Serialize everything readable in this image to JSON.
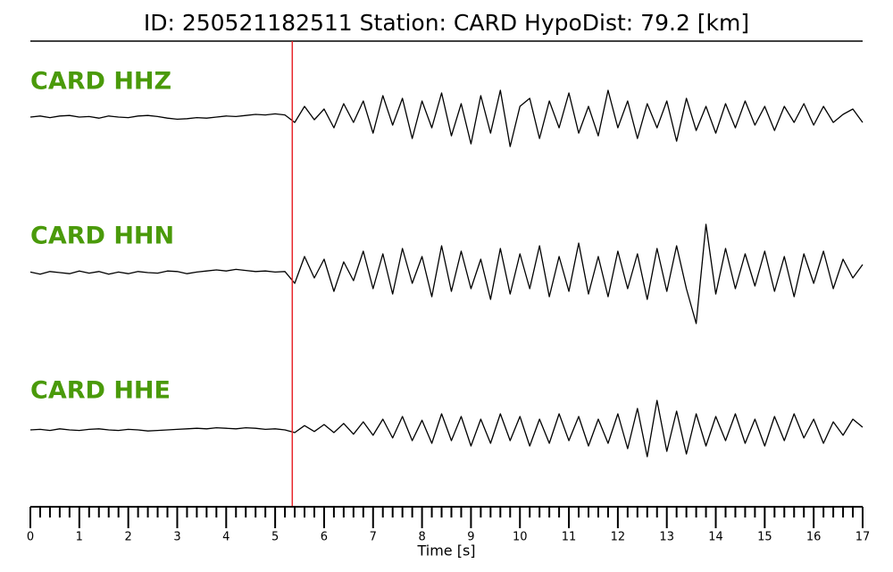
{
  "chart_data": {
    "type": "line",
    "title": "ID: 250521182511   Station: CARD   HypoDist:    79.2 [km]",
    "xlabel": "Time [s]",
    "xlim": [
      0,
      17
    ],
    "xticks": [
      0,
      1,
      2,
      3,
      4,
      5,
      6,
      7,
      8,
      9,
      10,
      11,
      12,
      13,
      14,
      15,
      16,
      17
    ],
    "x_minor_ticks": [
      0.2,
      0.4,
      0.6,
      0.8,
      1.2,
      1.4,
      1.6,
      1.8,
      2.2,
      2.4,
      2.6,
      2.8,
      3.2,
      3.4,
      3.6,
      3.8,
      4.2,
      4.4,
      4.6,
      4.8,
      5.2,
      5.4,
      5.6,
      5.8,
      6.2,
      6.4,
      6.6,
      6.8,
      7.2,
      7.4,
      7.6,
      7.8,
      8.2,
      8.4,
      8.6,
      8.8,
      9.2,
      9.4,
      9.6,
      9.8,
      10.2,
      10.4,
      10.6,
      10.8,
      11.2,
      11.4,
      11.6,
      11.8,
      12.2,
      12.4,
      12.6,
      12.8,
      13.2,
      13.4,
      13.6,
      13.8,
      14.2,
      14.4,
      14.6,
      14.8,
      15.2,
      15.4,
      15.6,
      15.8,
      16.2,
      16.4,
      16.6,
      16.8
    ],
    "ylim": [
      -1,
      1
    ],
    "pick": 5.35,
    "pick_color": "#e8262a",
    "label_color": "#4a9a0a",
    "x": [
      0,
      0.2,
      0.4,
      0.6,
      0.8,
      1,
      1.2,
      1.4,
      1.6,
      1.8,
      2,
      2.2,
      2.4,
      2.6,
      2.8,
      3,
      3.2,
      3.4,
      3.6,
      3.8,
      4,
      4.2,
      4.4,
      4.6,
      4.8,
      5,
      5.2,
      5.4,
      5.6,
      5.8,
      6,
      6.2,
      6.4,
      6.6,
      6.8,
      7,
      7.2,
      7.4,
      7.6,
      7.8,
      8,
      8.2,
      8.4,
      8.6,
      8.8,
      9,
      9.2,
      9.4,
      9.6,
      9.8,
      10,
      10.2,
      10.4,
      10.6,
      10.8,
      11,
      11.2,
      11.4,
      11.6,
      11.8,
      12,
      12.2,
      12.4,
      12.6,
      12.8,
      13,
      13.2,
      13.4,
      13.6,
      13.8,
      14,
      14.2,
      14.4,
      14.6,
      14.8,
      15,
      15.2,
      15.4,
      15.6,
      15.8,
      16,
      16.2,
      16.4,
      16.6,
      16.8,
      17
    ],
    "series": [
      {
        "name": "CARD HHZ",
        "color": "#000000",
        "values": [
          0,
          0.02,
          -0.01,
          0.02,
          0.03,
          0,
          0.01,
          -0.02,
          0.02,
          0,
          -0.01,
          0.02,
          0.03,
          0.01,
          -0.02,
          -0.04,
          -0.03,
          -0.01,
          -0.02,
          0,
          0.02,
          0.01,
          0.03,
          0.05,
          0.04,
          0.06,
          0.04,
          -0.1,
          0.2,
          -0.05,
          0.15,
          -0.2,
          0.25,
          -0.1,
          0.3,
          -0.3,
          0.4,
          -0.15,
          0.35,
          -0.4,
          0.3,
          -0.2,
          0.45,
          -0.35,
          0.25,
          -0.5,
          0.4,
          -0.3,
          0.5,
          -0.55,
          0.2,
          0.35,
          -0.4,
          0.3,
          -0.2,
          0.45,
          -0.3,
          0.2,
          -0.35,
          0.5,
          -0.2,
          0.3,
          -0.4,
          0.25,
          -0.2,
          0.3,
          -0.45,
          0.35,
          -0.25,
          0.2,
          -0.3,
          0.25,
          -0.2,
          0.3,
          -0.15,
          0.2,
          -0.25,
          0.2,
          -0.1,
          0.25,
          -0.15,
          0.2,
          -0.1,
          0.05,
          0.15,
          -0.1
        ]
      },
      {
        "name": "CARD HHN",
        "color": "#000000",
        "values": [
          0.01,
          -0.03,
          0.02,
          0,
          -0.02,
          0.03,
          -0.01,
          0.02,
          -0.03,
          0.01,
          -0.02,
          0.02,
          0,
          -0.01,
          0.03,
          0.02,
          -0.02,
          0.01,
          0.03,
          0.05,
          0.03,
          0.06,
          0.04,
          0.02,
          0.03,
          0.01,
          0.02,
          -0.2,
          0.3,
          -0.1,
          0.25,
          -0.35,
          0.2,
          -0.15,
          0.4,
          -0.3,
          0.35,
          -0.4,
          0.45,
          -0.2,
          0.3,
          -0.45,
          0.5,
          -0.35,
          0.4,
          -0.3,
          0.25,
          -0.5,
          0.45,
          -0.4,
          0.35,
          -0.3,
          0.5,
          -0.45,
          0.3,
          -0.35,
          0.55,
          -0.4,
          0.3,
          -0.45,
          0.4,
          -0.3,
          0.35,
          -0.5,
          0.45,
          -0.35,
          0.5,
          -0.3,
          -0.95,
          0.9,
          -0.4,
          0.45,
          -0.3,
          0.35,
          -0.25,
          0.4,
          -0.35,
          0.3,
          -0.45,
          0.35,
          -0.2,
          0.4,
          -0.3,
          0.25,
          -0.1,
          0.15
        ]
      },
      {
        "name": "CARD HHE",
        "color": "#000000",
        "values": [
          0,
          0.01,
          -0.01,
          0.02,
          0,
          -0.01,
          0.01,
          0.02,
          0,
          -0.01,
          0.01,
          0,
          -0.02,
          -0.01,
          0,
          0.01,
          0.02,
          0.03,
          0.02,
          0.04,
          0.03,
          0.02,
          0.04,
          0.03,
          0.01,
          0.02,
          0,
          -0.05,
          0.08,
          -0.03,
          0.1,
          -0.05,
          0.12,
          -0.08,
          0.15,
          -0.1,
          0.2,
          -0.15,
          0.25,
          -0.2,
          0.18,
          -0.25,
          0.3,
          -0.2,
          0.25,
          -0.3,
          0.2,
          -0.25,
          0.3,
          -0.2,
          0.25,
          -0.3,
          0.2,
          -0.25,
          0.3,
          -0.2,
          0.25,
          -0.3,
          0.2,
          -0.25,
          0.3,
          -0.35,
          0.4,
          -0.5,
          0.55,
          -0.4,
          0.35,
          -0.45,
          0.3,
          -0.3,
          0.25,
          -0.2,
          0.3,
          -0.25,
          0.2,
          -0.3,
          0.25,
          -0.2,
          0.3,
          -0.15,
          0.2,
          -0.25,
          0.15,
          -0.1,
          0.2,
          0.05
        ]
      }
    ]
  }
}
